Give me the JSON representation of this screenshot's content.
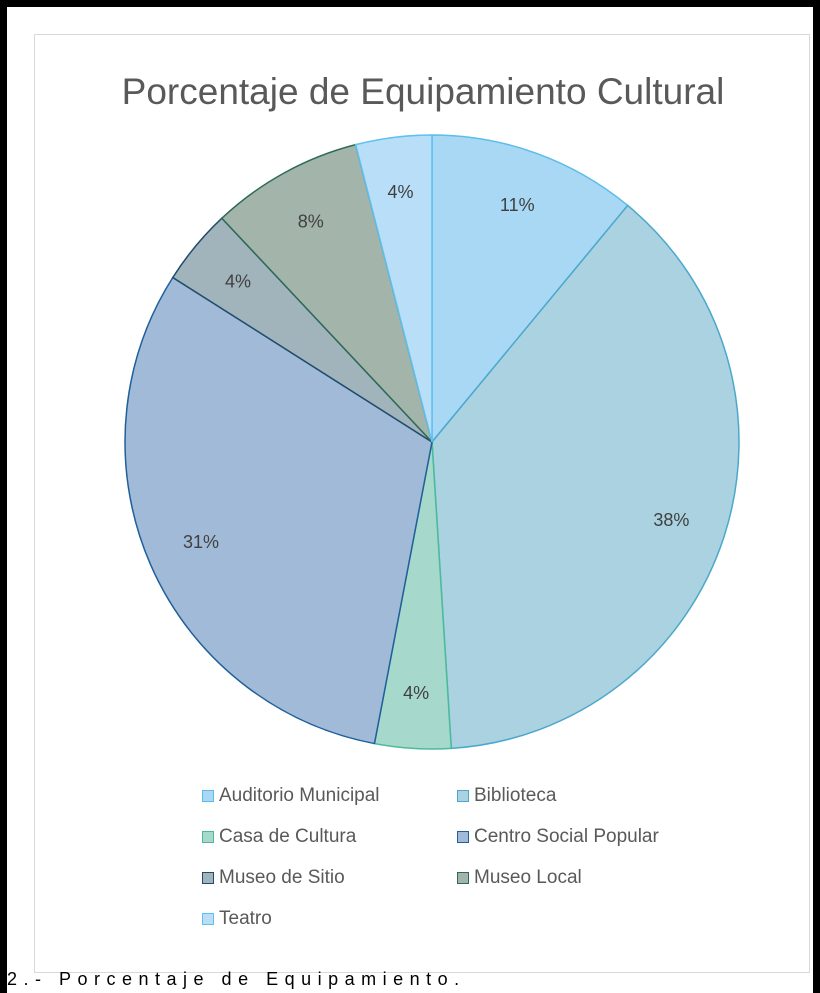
{
  "chart_data": {
    "type": "pie",
    "title": "Porcentaje de Equipamiento Cultural",
    "categories": [
      "Auditorio Municipal",
      "Biblioteca",
      "Casa de Cultura",
      "Centro Social Popular",
      "Museo de Sitio",
      "Museo Local",
      "Teatro"
    ],
    "values": [
      11,
      38,
      4,
      31,
      4,
      8,
      4
    ],
    "labels": [
      "11%",
      "38%",
      "4%",
      "31%",
      "4%",
      "8%",
      "4%"
    ],
    "colors": [
      "#a9d8f5",
      "#aad2e0",
      "#a6d9cb",
      "#a1bad8",
      "#a1b4bc",
      "#a3b5aa",
      "#b8def8"
    ],
    "edge_colors": [
      "#5bbde8",
      "#4aa8cc",
      "#4cb99b",
      "#1f5f9a",
      "#1f4d6a",
      "#2e6b57",
      "#5fc0ef"
    ],
    "legend_placement": "bottom"
  },
  "caption": "2.- Porcentaje de Equipamiento."
}
